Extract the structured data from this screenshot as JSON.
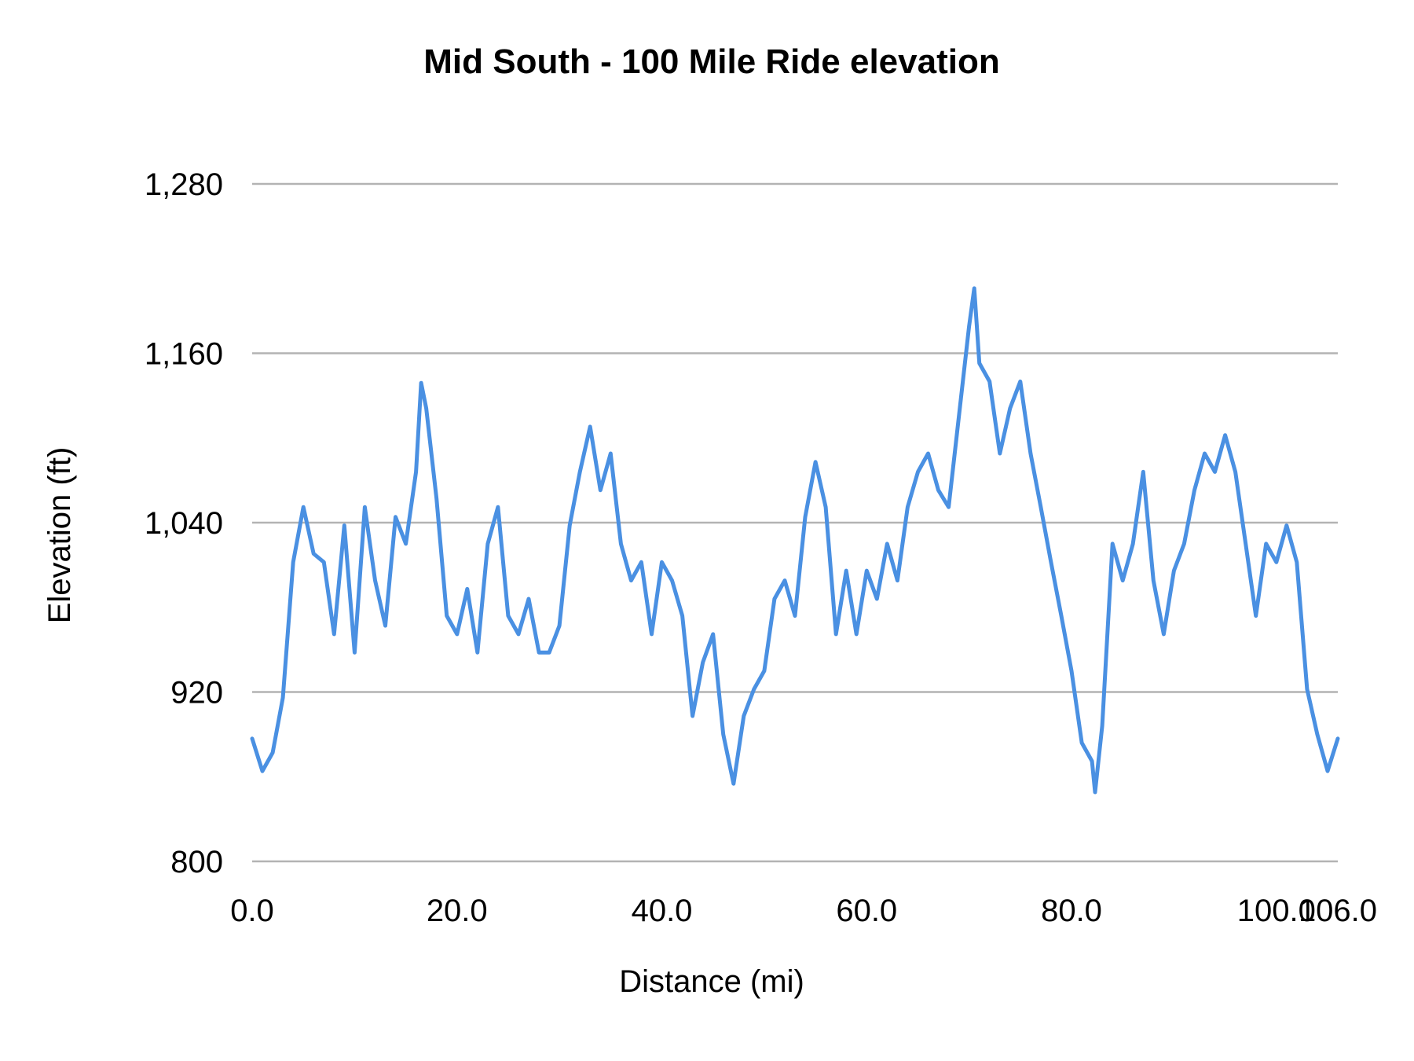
{
  "chart_data": {
    "type": "line",
    "title": "Mid South - 100 Mile Ride elevation",
    "xlabel": "Distance (mi)",
    "ylabel": "Elevation (ft)",
    "xlim": [
      0,
      106
    ],
    "ylim": [
      800,
      1280
    ],
    "x_ticks": [
      "0.0",
      "20.0",
      "40.0",
      "60.0",
      "80.0",
      "100.0",
      "106.0"
    ],
    "x_tick_values": [
      0,
      20,
      40,
      60,
      80,
      100,
      106
    ],
    "y_ticks": [
      "800",
      "920",
      "1,040",
      "1,160",
      "1,280"
    ],
    "y_tick_values": [
      800,
      920,
      1040,
      1160,
      1280
    ],
    "grid": true,
    "legend": "none",
    "color": "#4a90e2",
    "series": [
      {
        "x": [
          0,
          1,
          2,
          3,
          4,
          5,
          6,
          7,
          8,
          9,
          10,
          11,
          12,
          13,
          14,
          15,
          16,
          16.5,
          17,
          18,
          19,
          20,
          21,
          22,
          23,
          24,
          25,
          26,
          27,
          28,
          29,
          30,
          31,
          32,
          33,
          34,
          35,
          36,
          37,
          38,
          39,
          40,
          41,
          42,
          43,
          44,
          45,
          46,
          47,
          48,
          49,
          50,
          51,
          52,
          53,
          54,
          55,
          56,
          57,
          58,
          59,
          60,
          61,
          62,
          63,
          64,
          65,
          66,
          67,
          68,
          69,
          70,
          70.5,
          71,
          72,
          73,
          74,
          75,
          76,
          77,
          78,
          79,
          80,
          81,
          82,
          82.3,
          83,
          84,
          85,
          86,
          87,
          88,
          89,
          90,
          91,
          92,
          93,
          94,
          95,
          96,
          97,
          98,
          99,
          100,
          101,
          102,
          103,
          104,
          105,
          106
        ],
        "y": [
          887,
          864,
          877,
          916,
          1012,
          1051,
          1018,
          1012,
          961,
          1038,
          948,
          1051,
          999,
          967,
          1044,
          1025,
          1076,
          1139,
          1121,
          1057,
          974,
          961,
          993,
          948,
          1025,
          1051,
          974,
          961,
          986,
          948,
          948,
          967,
          1038,
          1076,
          1108,
          1063,
          1089,
          1025,
          999,
          1012,
          961,
          1012,
          999,
          974,
          903,
          941,
          961,
          890,
          855,
          903,
          922,
          935,
          986,
          999,
          974,
          1044,
          1083,
          1051,
          961,
          1006,
          961,
          1006,
          986,
          1025,
          999,
          1051,
          1076,
          1089,
          1063,
          1051,
          1115,
          1179,
          1206,
          1153,
          1140,
          1089,
          1121,
          1140,
          1089,
          1051,
          1012,
          974,
          935,
          884,
          871,
          849,
          896,
          1025,
          999,
          1025,
          1076,
          999,
          961,
          1006,
          1025,
          1063,
          1089,
          1076,
          1102,
          1076,
          1025,
          974,
          1025,
          1012,
          1038,
          1012,
          922,
          890,
          864,
          887
        ]
      }
    ]
  }
}
